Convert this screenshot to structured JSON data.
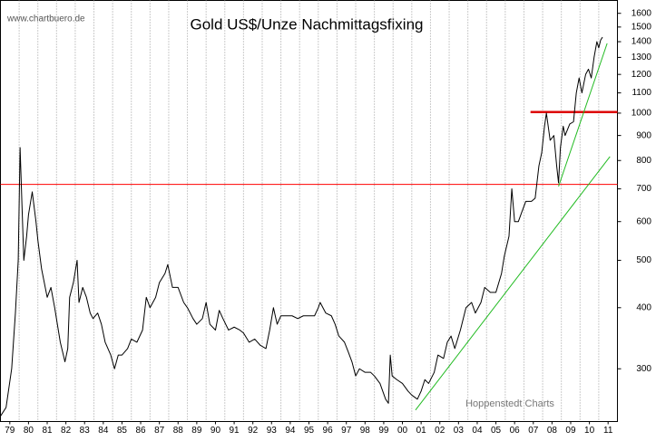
{
  "chart_data": {
    "type": "line",
    "title": "Gold US$/Unze Nachmittagsfixing",
    "source": "www.chartbuero.de",
    "annotation": "Hoppenstedt Charts",
    "log_scale": true,
    "color": "#000000",
    "xlim": [
      1979,
      2012
    ],
    "ylim": [
      234,
      1700
    ],
    "yticks": [
      300,
      400,
      500,
      600,
      700,
      800,
      900,
      1000,
      1100,
      1200,
      1300,
      1400,
      1500,
      1600
    ],
    "xgrid": [
      1980,
      1981,
      1982,
      1983,
      1984,
      1985,
      1986,
      1987,
      1988,
      1989,
      1990,
      1991,
      1992,
      1993,
      1994,
      1995,
      1996,
      1997,
      1998,
      1999,
      2000,
      2001,
      2002,
      2003,
      2004,
      2005,
      2006,
      2007,
      2008,
      2009,
      2010,
      2011
    ],
    "xticks": [
      {
        "value": 1979.5,
        "label": "79"
      },
      {
        "value": 1980.5,
        "label": "80"
      },
      {
        "value": 1981.5,
        "label": "81"
      },
      {
        "value": 1982.5,
        "label": "82"
      },
      {
        "value": 1983.5,
        "label": "83"
      },
      {
        "value": 1984.5,
        "label": "84"
      },
      {
        "value": 1985.5,
        "label": "85"
      },
      {
        "value": 1986.5,
        "label": "86"
      },
      {
        "value": 1987.5,
        "label": "87"
      },
      {
        "value": 1988.5,
        "label": "88"
      },
      {
        "value": 1989.5,
        "label": "89"
      },
      {
        "value": 1990.5,
        "label": "90"
      },
      {
        "value": 1991.5,
        "label": "91"
      },
      {
        "value": 1992.5,
        "label": "92"
      },
      {
        "value": 1993.5,
        "label": "93"
      },
      {
        "value": 1994.5,
        "label": "94"
      },
      {
        "value": 1995.5,
        "label": "95"
      },
      {
        "value": 1996.5,
        "label": "96"
      },
      {
        "value": 1997.5,
        "label": "97"
      },
      {
        "value": 1998.5,
        "label": "98"
      },
      {
        "value": 1999.5,
        "label": "99"
      },
      {
        "value": 2000.5,
        "label": "00"
      },
      {
        "value": 2001.5,
        "label": "01"
      },
      {
        "value": 2002.5,
        "label": "02"
      },
      {
        "value": 2003.5,
        "label": "03"
      },
      {
        "value": 2004.5,
        "label": "04"
      },
      {
        "value": 2005.5,
        "label": "05"
      },
      {
        "value": 2006.5,
        "label": "06"
      },
      {
        "value": 2007.5,
        "label": "07"
      },
      {
        "value": 2008.5,
        "label": "08"
      },
      {
        "value": 2009.5,
        "label": "09"
      },
      {
        "value": 2010.5,
        "label": "10"
      },
      {
        "value": 2011.5,
        "label": "11"
      }
    ],
    "x": [
      1979.0,
      1979.3,
      1979.6,
      1979.8,
      1979.95,
      1980.05,
      1980.15,
      1980.25,
      1980.4,
      1980.5,
      1980.7,
      1980.9,
      1981.0,
      1981.2,
      1981.5,
      1981.7,
      1981.9,
      1982.2,
      1982.45,
      1982.6,
      1982.7,
      1982.9,
      1983.1,
      1983.2,
      1983.4,
      1983.6,
      1983.8,
      1983.95,
      1984.2,
      1984.4,
      1984.6,
      1984.9,
      1985.1,
      1985.3,
      1985.5,
      1985.8,
      1986.0,
      1986.3,
      1986.6,
      1986.8,
      1987.0,
      1987.3,
      1987.5,
      1987.8,
      1987.95,
      1988.2,
      1988.5,
      1988.8,
      1989.0,
      1989.3,
      1989.5,
      1989.8,
      1990.0,
      1990.2,
      1990.5,
      1990.7,
      1990.9,
      1991.2,
      1991.5,
      1991.8,
      1992.0,
      1992.3,
      1992.6,
      1992.9,
      1993.2,
      1993.4,
      1993.6,
      1993.8,
      1994.0,
      1994.3,
      1994.6,
      1994.9,
      1995.2,
      1995.5,
      1995.8,
      1996.0,
      1996.1,
      1996.4,
      1996.7,
      1996.9,
      1997.1,
      1997.4,
      1997.6,
      1997.8,
      1998.0,
      1998.2,
      1998.5,
      1998.8,
      1999.0,
      1999.3,
      1999.6,
      1999.75,
      1999.85,
      1999.95,
      2000.2,
      2000.5,
      2000.8,
      2001.0,
      2001.3,
      2001.5,
      2001.7,
      2001.9,
      2002.2,
      2002.4,
      2002.7,
      2002.9,
      2003.1,
      2003.3,
      2003.6,
      2003.9,
      2004.2,
      2004.4,
      2004.7,
      2004.9,
      2005.2,
      2005.5,
      2005.8,
      2005.95,
      2006.2,
      2006.35,
      2006.5,
      2006.7,
      2006.9,
      2007.1,
      2007.4,
      2007.6,
      2007.8,
      2007.95,
      2008.1,
      2008.2,
      2008.4,
      2008.6,
      2008.75,
      2008.85,
      2008.95,
      2009.1,
      2009.2,
      2009.45,
      2009.65,
      2009.8,
      2009.95,
      2010.1,
      2010.3,
      2010.45,
      2010.6,
      2010.75,
      2010.9,
      2011.0,
      2011.1,
      2011.2
    ],
    "values": [
      240,
      250,
      300,
      390,
      500,
      850,
      650,
      500,
      560,
      620,
      690,
      600,
      550,
      480,
      420,
      440,
      400,
      340,
      310,
      330,
      420,
      450,
      500,
      410,
      440,
      420,
      390,
      380,
      390,
      370,
      340,
      320,
      300,
      320,
      320,
      330,
      345,
      340,
      360,
      420,
      400,
      420,
      450,
      470,
      490,
      440,
      440,
      410,
      400,
      380,
      370,
      380,
      410,
      370,
      360,
      395,
      380,
      360,
      365,
      360,
      355,
      340,
      345,
      335,
      330,
      360,
      400,
      370,
      385,
      385,
      385,
      380,
      385,
      385,
      385,
      400,
      410,
      390,
      385,
      370,
      350,
      340,
      325,
      310,
      290,
      300,
      295,
      295,
      290,
      280,
      260,
      255,
      320,
      290,
      285,
      280,
      270,
      265,
      260,
      270,
      285,
      280,
      295,
      320,
      315,
      340,
      350,
      330,
      360,
      400,
      410,
      390,
      410,
      440,
      430,
      430,
      470,
      510,
      560,
      700,
      600,
      600,
      630,
      660,
      660,
      670,
      780,
      830,
      940,
      1000,
      880,
      900,
      780,
      720,
      850,
      940,
      900,
      950,
      960,
      1100,
      1180,
      1100,
      1200,
      1230,
      1180,
      1300,
      1400,
      1360,
      1410,
      1430
    ],
    "reference_lines": [
      {
        "x": [
          1979,
          2012
        ],
        "y": [
          715,
          715
        ],
        "color": "#ff0000",
        "width": 1
      },
      {
        "x": [
          2007.35,
          2012
        ],
        "y": [
          1005,
          1005
        ],
        "color": "#dd0000",
        "width": 2.5
      },
      {
        "x": [
          2001.2,
          2011.6
        ],
        "y": [
          247,
          815
        ],
        "color": "#22bb22",
        "width": 1
      },
      {
        "x": [
          2008.85,
          2011.45
        ],
        "y": [
          708,
          1389
        ],
        "color": "#22bb22",
        "width": 1
      }
    ]
  }
}
